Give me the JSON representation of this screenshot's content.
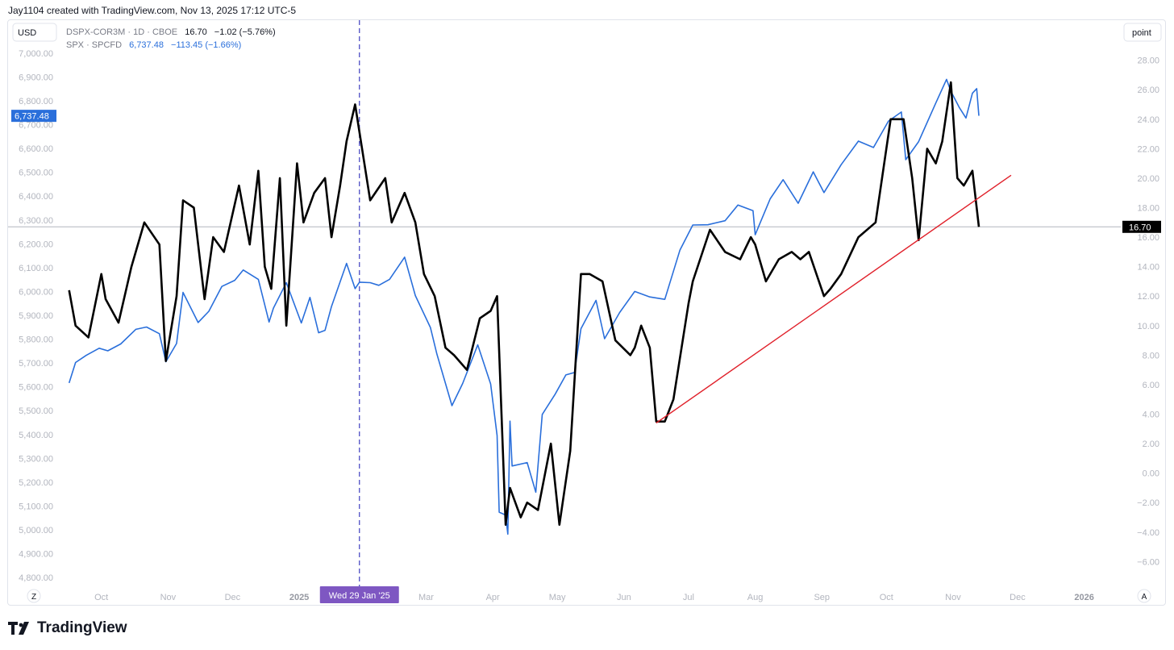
{
  "header": {
    "credit": "Jay1104 created with TradingView.com, Nov 13, 2025 17:12 UTC-5"
  },
  "buttons": {
    "currency": "USD",
    "unit": "point",
    "zoom": "Z",
    "auto": "A"
  },
  "brand": {
    "name": "TradingView"
  },
  "legend": [
    {
      "symbol": "DSPX-COR3M · 1D · CBOE",
      "last": "16.70",
      "change": "−1.02 (−5.76%)"
    },
    {
      "symbol": "SPX · SPCFD",
      "last": "6,737.48",
      "change": "−113.45 (−1.66%)"
    }
  ],
  "crosshair_label": "Wed 29 Jan '25",
  "price_tags": {
    "left": "6,737.48",
    "right": "16.70"
  },
  "colors": {
    "spx": "#2a6fdb",
    "dspx": "#000000",
    "trend": "#e0202a",
    "crosshair": "#3d3dbf",
    "label_bg": "#7e57c2"
  },
  "chart_data": {
    "type": "line",
    "x_ticks": [
      "Oct",
      "Nov",
      "Dec",
      "2025",
      "Mar",
      "Apr",
      "May",
      "Jun",
      "Jul",
      "Aug",
      "Sep",
      "Oct",
      "Nov",
      "Dec",
      "2026"
    ],
    "x_range": [
      "2024-09-12",
      "2026-01-18"
    ],
    "y_left": {
      "label": "SPX",
      "range": [
        4780,
        7020
      ],
      "ticks": [
        "7,000.00",
        "6,900.00",
        "6,800.00",
        "6,700.00",
        "6,600.00",
        "6,500.00",
        "6,400.00",
        "6,300.00",
        "6,200.00",
        "6,100.00",
        "6,000.00",
        "5,900.00",
        "5,800.00",
        "5,700.00",
        "5,600.00",
        "5,500.00",
        "5,400.00",
        "5,300.00",
        "5,200.00",
        "5,100.00",
        "5,000.00",
        "4,900.00",
        "4,800.00"
      ]
    },
    "y_right": {
      "label": "point",
      "range": [
        -7.4,
        28.8
      ],
      "ticks": [
        "28.00",
        "26.00",
        "24.00",
        "22.00",
        "20.00",
        "18.00",
        "16.00",
        "14.00",
        "12.00",
        "10.00",
        "8.00",
        "6.00",
        "4.00",
        "2.00",
        "0.00",
        "−2.00",
        "−4.00",
        "−6.00"
      ]
    },
    "series": [
      {
        "name": "SPX · SPCFD",
        "axis": "left",
        "x": [
          "2024-09-16",
          "2024-09-19",
          "2024-09-24",
          "2024-09-30",
          "2024-10-04",
          "2024-10-10",
          "2024-10-17",
          "2024-10-22",
          "2024-10-28",
          "2024-10-31",
          "2024-11-05",
          "2024-11-08",
          "2024-11-15",
          "2024-11-20",
          "2024-11-26",
          "2024-12-02",
          "2024-12-06",
          "2024-12-13",
          "2024-12-18",
          "2024-12-20",
          "2024-12-26",
          "2025-01-02",
          "2025-01-06",
          "2025-01-10",
          "2025-01-13",
          "2025-01-16",
          "2025-01-23",
          "2025-01-27",
          "2025-01-29",
          "2025-02-03",
          "2025-02-07",
          "2025-02-12",
          "2025-02-19",
          "2025-02-24",
          "2025-03-03",
          "2025-03-06",
          "2025-03-10",
          "2025-03-13",
          "2025-03-18",
          "2025-03-25",
          "2025-03-31",
          "2025-04-03",
          "2025-04-04",
          "2025-04-07",
          "2025-04-08",
          "2025-04-09",
          "2025-04-10",
          "2025-04-17",
          "2025-04-21",
          "2025-04-24",
          "2025-04-30",
          "2025-05-05",
          "2025-05-09",
          "2025-05-12",
          "2025-05-19",
          "2025-05-23",
          "2025-05-30",
          "2025-06-06",
          "2025-06-13",
          "2025-06-20",
          "2025-06-27",
          "2025-07-03",
          "2025-07-10",
          "2025-07-18",
          "2025-07-24",
          "2025-07-31",
          "2025-08-01",
          "2025-08-08",
          "2025-08-14",
          "2025-08-21",
          "2025-08-28",
          "2025-09-02",
          "2025-09-10",
          "2025-09-18",
          "2025-09-25",
          "2025-10-02",
          "2025-10-08",
          "2025-10-10",
          "2025-10-16",
          "2025-10-24",
          "2025-10-29",
          "2025-10-31",
          "2025-11-04",
          "2025-11-07",
          "2025-11-10",
          "2025-11-12",
          "2025-11-13"
        ],
        "values": [
          5616,
          5702,
          5732,
          5762,
          5751,
          5780,
          5841,
          5851,
          5823,
          5705,
          5782,
          5996,
          5870,
          5917,
          6021,
          6047,
          6090,
          6051,
          5872,
          5930,
          6037,
          5868,
          5975,
          5827,
          5837,
          5937,
          6118,
          6012,
          6039,
          6037,
          6026,
          6051,
          6144,
          5983,
          5849,
          5738,
          5614,
          5521,
          5614,
          5776,
          5612,
          5396,
          5074,
          5062,
          4982,
          5456,
          5268,
          5282,
          5158,
          5484,
          5569,
          5650,
          5660,
          5844,
          5963,
          5802,
          5912,
          6000,
          5977,
          5967,
          6173,
          6279,
          6280,
          6297,
          6363,
          6339,
          6238,
          6389,
          6469,
          6370,
          6502,
          6415,
          6532,
          6631,
          6604,
          6715,
          6753,
          6553,
          6629,
          6791,
          6890,
          6840,
          6771,
          6728,
          6832,
          6851,
          6737
        ]
      },
      {
        "name": "DSPX-COR3M · 1D · CBOE",
        "axis": "right",
        "x": [
          "2024-09-16",
          "2024-09-19",
          "2024-09-25",
          "2024-10-01",
          "2024-10-03",
          "2024-10-09",
          "2024-10-15",
          "2024-10-21",
          "2024-10-28",
          "2024-10-31",
          "2024-11-05",
          "2024-11-08",
          "2024-11-13",
          "2024-11-18",
          "2024-11-22",
          "2024-11-27",
          "2024-12-04",
          "2024-12-09",
          "2024-12-13",
          "2024-12-16",
          "2024-12-19",
          "2024-12-23",
          "2024-12-26",
          "2024-12-31",
          "2025-01-03",
          "2025-01-08",
          "2025-01-13",
          "2025-01-16",
          "2025-01-20",
          "2025-01-23",
          "2025-01-27",
          "2025-02-03",
          "2025-02-10",
          "2025-02-13",
          "2025-02-19",
          "2025-02-24",
          "2025-02-28",
          "2025-03-05",
          "2025-03-10",
          "2025-03-14",
          "2025-03-20",
          "2025-03-26",
          "2025-03-31",
          "2025-04-03",
          "2025-04-07",
          "2025-04-09",
          "2025-04-14",
          "2025-04-17",
          "2025-04-22",
          "2025-04-28",
          "2025-05-02",
          "2025-05-07",
          "2025-05-12",
          "2025-05-16",
          "2025-05-22",
          "2025-05-28",
          "2025-06-04",
          "2025-06-06",
          "2025-06-09",
          "2025-06-13",
          "2025-06-16",
          "2025-06-20",
          "2025-06-24",
          "2025-07-01",
          "2025-07-03",
          "2025-07-11",
          "2025-07-18",
          "2025-07-25",
          "2025-07-30",
          "2025-08-01",
          "2025-08-06",
          "2025-08-12",
          "2025-08-18",
          "2025-08-22",
          "2025-08-26",
          "2025-09-02",
          "2025-09-05",
          "2025-09-10",
          "2025-09-18",
          "2025-09-26",
          "2025-10-03",
          "2025-10-09",
          "2025-10-13",
          "2025-10-16",
          "2025-10-20",
          "2025-10-24",
          "2025-10-27",
          "2025-10-31",
          "2025-11-03",
          "2025-11-06",
          "2025-11-10",
          "2025-11-13"
        ],
        "values": [
          12.4,
          10.0,
          9.2,
          13.5,
          11.8,
          10.2,
          14.0,
          17.0,
          15.5,
          7.6,
          12.0,
          18.5,
          18.0,
          11.8,
          16.0,
          15.0,
          19.5,
          15.5,
          20.5,
          14.0,
          12.5,
          20.0,
          10.0,
          21.0,
          17.0,
          19.0,
          20.0,
          16.0,
          19.5,
          22.5,
          25.0,
          18.5,
          20.0,
          17.0,
          19.0,
          17.0,
          13.5,
          12.0,
          8.5,
          8.0,
          7.0,
          10.5,
          11.0,
          12.0,
          -3.5,
          -1.0,
          -3.0,
          -2.0,
          -2.5,
          2.0,
          -3.5,
          1.5,
          13.5,
          13.5,
          13.0,
          9.0,
          8.0,
          8.5,
          10.0,
          8.5,
          3.5,
          3.5,
          5.0,
          11.5,
          13.0,
          16.5,
          15.0,
          14.5,
          16.0,
          15.5,
          13.0,
          14.5,
          15.0,
          14.5,
          15.0,
          12.0,
          12.5,
          13.5,
          16.0,
          17.0,
          24.0,
          24.0,
          20.0,
          15.8,
          22.0,
          21.0,
          22.5,
          26.5,
          20.0,
          19.5,
          20.5,
          16.7
        ]
      },
      {
        "name": "",
        "axis": "right",
        "kind": "trendline",
        "x": [
          "2025-06-16",
          "2025-11-28"
        ],
        "values": [
          3.4,
          20.2
        ]
      }
    ]
  }
}
